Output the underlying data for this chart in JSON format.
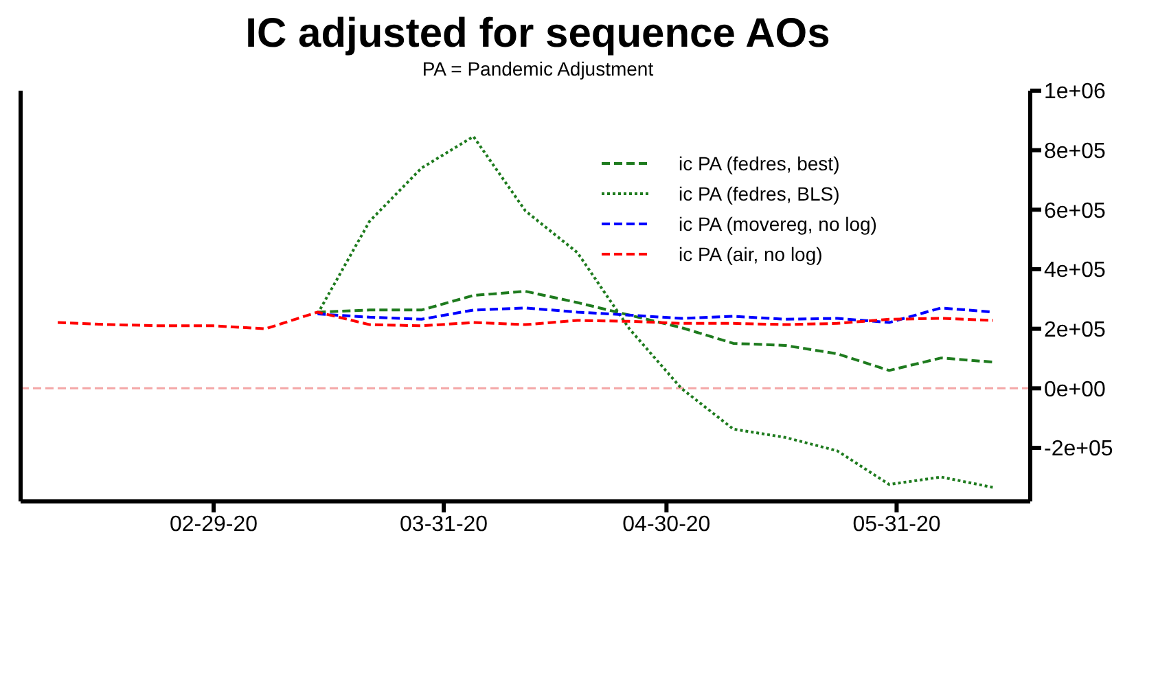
{
  "chart_data": {
    "type": "line",
    "title": "IC adjusted for sequence AOs",
    "subtitle": "PA = Pandemic Adjustment",
    "x": [
      "2020-02-08",
      "2020-02-15",
      "2020-02-22",
      "2020-02-29",
      "2020-03-07",
      "2020-03-14",
      "2020-03-21",
      "2020-03-28",
      "2020-04-04",
      "2020-04-11",
      "2020-04-18",
      "2020-04-25",
      "2020-05-02",
      "2020-05-09",
      "2020-05-16",
      "2020-05-23",
      "2020-05-30",
      "2020-06-06",
      "2020-06-13"
    ],
    "series": [
      {
        "name": "ic PA (fedres, best)",
        "color": "#1e7b1e",
        "line_style": "dashed",
        "values": [
          null,
          null,
          null,
          null,
          null,
          256000,
          263000,
          263000,
          312000,
          326000,
          288000,
          246000,
          204000,
          151000,
          144000,
          116000,
          60000,
          102000,
          88000
        ]
      },
      {
        "name": "ic PA (fedres, BLS)",
        "color": "#1e7b1e",
        "line_style": "dotted",
        "values": [
          null,
          null,
          null,
          null,
          null,
          250000,
          561000,
          740000,
          846000,
          596000,
          456000,
          200000,
          0,
          -137000,
          -165000,
          -210000,
          -323000,
          -298000,
          -333000
        ]
      },
      {
        "name": "ic PA (movereg, no log)",
        "color": "#0000ff",
        "line_style": "dashed",
        "values": [
          null,
          null,
          null,
          null,
          null,
          250000,
          239000,
          232000,
          263000,
          270000,
          256000,
          246000,
          235000,
          242000,
          232000,
          235000,
          221000,
          270000,
          256000
        ]
      },
      {
        "name": "ic PA (air, no log)",
        "color": "#ff0000",
        "line_style": "dashed",
        "values": [
          221000,
          214000,
          210000,
          210000,
          200000,
          256000,
          214000,
          210000,
          221000,
          214000,
          228000,
          225000,
          218000,
          218000,
          214000,
          218000,
          232000,
          235000,
          228000
        ]
      }
    ],
    "xlim": [
      "2020-02-03",
      "2020-06-18"
    ],
    "xticks": [
      {
        "value": "2020-02-29",
        "label": "02-29-20"
      },
      {
        "value": "2020-03-31",
        "label": "03-31-20"
      },
      {
        "value": "2020-04-30",
        "label": "04-30-20"
      },
      {
        "value": "2020-05-31",
        "label": "05-31-20"
      }
    ],
    "ylim": [
      -380000,
      1000000
    ],
    "yticks": [
      {
        "value": -200000,
        "label": "-2e+05"
      },
      {
        "value": 0,
        "label": "0e+00"
      },
      {
        "value": 200000,
        "label": "2e+05"
      },
      {
        "value": 400000,
        "label": "4e+05"
      },
      {
        "value": 600000,
        "label": "6e+05"
      },
      {
        "value": 800000,
        "label": "8e+05"
      },
      {
        "value": 1000000,
        "label": "1e+06"
      }
    ],
    "ref_lines": [
      {
        "axis": "y",
        "value": 0,
        "color": "#f4a6a6",
        "line_style": "dashed"
      }
    ],
    "legend": "top right",
    "grid": false,
    "tick_labels": "xy",
    "marker": "none"
  }
}
